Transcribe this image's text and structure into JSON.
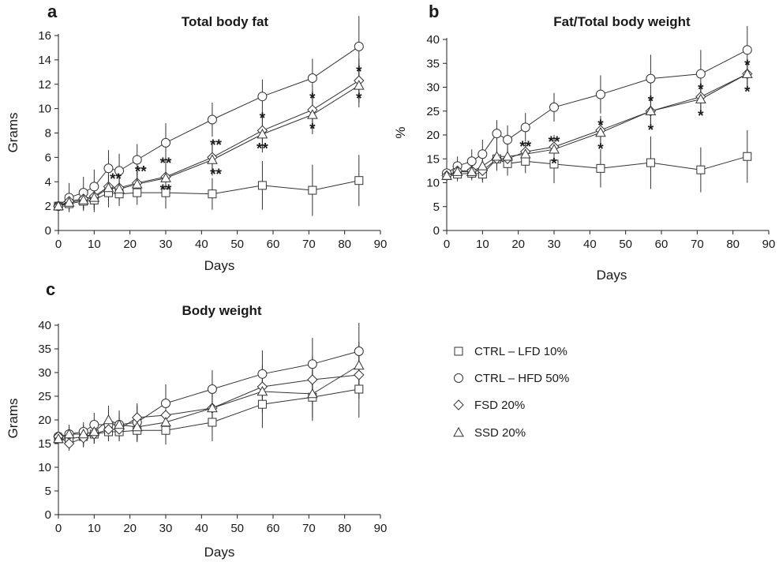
{
  "legend": [
    {
      "series": "CTRL",
      "label": "CTRL – LFD 10%",
      "marker": "square"
    },
    {
      "series": "HFD",
      "label": "CTRL – HFD 50%",
      "marker": "circle"
    },
    {
      "series": "FSD",
      "label": "FSD 20%",
      "marker": "diamond"
    },
    {
      "series": "SSD",
      "label": "SSD 20%",
      "marker": "triangle"
    }
  ],
  "chart_data": [
    {
      "id": "a",
      "panel_label": "a",
      "type": "line",
      "title": "Total body fat",
      "xlabel": "Days",
      "ylabel": "Grams",
      "xlim": [
        0,
        90
      ],
      "ylim": [
        0,
        16
      ],
      "xticks": [
        0,
        10,
        20,
        30,
        40,
        50,
        60,
        70,
        80,
        90
      ],
      "yticks": [
        0,
        2,
        4,
        6,
        8,
        10,
        12,
        14,
        16
      ],
      "grid": false,
      "series": [
        {
          "key": "CTRL",
          "marker": "square",
          "x": [
            0,
            3,
            7,
            10,
            14,
            17,
            22,
            30,
            43,
            57,
            71,
            84
          ],
          "y": [
            2.0,
            2.2,
            2.4,
            2.5,
            3.1,
            3.0,
            3.1,
            3.1,
            3.0,
            3.7,
            3.3,
            4.1
          ],
          "err": [
            0.3,
            0.6,
            0.8,
            1.0,
            1.2,
            1.0,
            1.0,
            1.3,
            1.3,
            2.0,
            2.1,
            2.1
          ]
        },
        {
          "key": "HFD",
          "marker": "circle",
          "x": [
            0,
            3,
            7,
            10,
            14,
            17,
            22,
            30,
            43,
            57,
            71,
            84
          ],
          "y": [
            2.0,
            2.7,
            3.1,
            3.6,
            5.1,
            4.9,
            5.8,
            7.2,
            9.1,
            11.0,
            12.5,
            15.1
          ],
          "err": [
            0.3,
            1.2,
            1.3,
            1.4,
            1.5,
            1.4,
            1.3,
            1.6,
            1.4,
            1.4,
            1.6,
            2.5
          ]
        },
        {
          "key": "FSD",
          "marker": "diamond",
          "x": [
            0,
            3,
            7,
            10,
            14,
            17,
            22,
            30,
            43,
            57,
            71,
            84
          ],
          "y": [
            2.0,
            2.4,
            2.6,
            2.8,
            3.6,
            3.5,
            3.9,
            4.4,
            6.0,
            8.2,
            9.9,
            12.3
          ],
          "err": [
            0.3,
            0.6,
            0.8,
            1.0,
            1.0,
            1.0,
            1.0,
            1.2,
            1.3,
            1.5,
            1.6,
            1.8
          ]
        },
        {
          "key": "SSD",
          "marker": "triangle",
          "x": [
            0,
            3,
            7,
            10,
            14,
            17,
            22,
            30,
            43,
            57,
            71,
            84
          ],
          "y": [
            2.0,
            2.3,
            2.5,
            2.7,
            3.5,
            3.4,
            3.8,
            4.3,
            5.8,
            7.9,
            9.5,
            11.9
          ],
          "err": [
            0.3,
            0.6,
            0.8,
            1.0,
            1.0,
            1.0,
            1.0,
            1.2,
            1.3,
            1.5,
            1.6,
            1.8
          ]
        }
      ],
      "annotations": [
        {
          "text": "**",
          "x": 16,
          "y": 4.6
        },
        {
          "text": "**",
          "x": 23,
          "y": 5.2
        },
        {
          "text": "**",
          "x": 30,
          "y": 5.9
        },
        {
          "text": "**",
          "x": 30,
          "y": 3.7
        },
        {
          "text": "**",
          "x": 44,
          "y": 7.4
        },
        {
          "text": "**",
          "x": 44,
          "y": 5.0
        },
        {
          "text": "*",
          "x": 57,
          "y": 9.6
        },
        {
          "text": "**",
          "x": 57,
          "y": 7.1
        },
        {
          "text": "*",
          "x": 71,
          "y": 11.2
        },
        {
          "text": "*",
          "x": 71,
          "y": 8.7
        },
        {
          "text": "*",
          "x": 84,
          "y": 13.4
        },
        {
          "text": "*",
          "x": 84,
          "y": 11.2
        }
      ]
    },
    {
      "id": "b",
      "panel_label": "b",
      "type": "line",
      "title": "Fat/Total body weight",
      "xlabel": "Days",
      "ylabel": "%",
      "xlim": [
        0,
        90
      ],
      "ylim": [
        0,
        40
      ],
      "xticks": [
        0,
        10,
        20,
        30,
        40,
        50,
        60,
        70,
        80,
        90
      ],
      "yticks": [
        0,
        5,
        10,
        15,
        20,
        25,
        30,
        35,
        40
      ],
      "grid": false,
      "series": [
        {
          "key": "CTRL",
          "marker": "square",
          "x": [
            0,
            3,
            7,
            10,
            14,
            17,
            22,
            30,
            43,
            57,
            71,
            84
          ],
          "y": [
            11.5,
            11.8,
            12.0,
            11.8,
            15.0,
            14.0,
            14.5,
            13.9,
            13.0,
            14.2,
            12.7,
            15.5
          ],
          "err": [
            1.0,
            1.5,
            1.5,
            1.8,
            2.5,
            2.5,
            2.5,
            4.0,
            4.0,
            5.5,
            4.7,
            5.5
          ]
        },
        {
          "key": "HFD",
          "marker": "circle",
          "x": [
            0,
            3,
            7,
            10,
            14,
            17,
            22,
            30,
            43,
            57,
            71,
            84
          ],
          "y": [
            12.0,
            13.5,
            14.5,
            16.0,
            20.3,
            19.0,
            21.6,
            25.8,
            28.5,
            31.8,
            32.8,
            37.8
          ],
          "err": [
            1.0,
            2.0,
            2.5,
            3.0,
            2.8,
            3.0,
            3.0,
            3.0,
            4.0,
            5.0,
            5.0,
            5.0
          ]
        },
        {
          "key": "FSD",
          "marker": "diamond",
          "x": [
            0,
            3,
            7,
            10,
            14,
            17,
            22,
            30,
            43,
            57,
            71,
            84
          ],
          "y": [
            11.5,
            12.5,
            12.5,
            12.5,
            15.0,
            15.0,
            16.5,
            17.5,
            21.0,
            25.0,
            28.0,
            32.8
          ],
          "err": [
            1.0,
            1.5,
            1.5,
            2.0,
            2.0,
            2.0,
            2.0,
            2.5,
            3.0,
            3.0,
            3.0,
            3.0
          ]
        },
        {
          "key": "SSD",
          "marker": "triangle",
          "x": [
            0,
            3,
            7,
            10,
            14,
            17,
            22,
            30,
            43,
            57,
            71,
            84
          ],
          "y": [
            11.5,
            12.3,
            12.3,
            13.5,
            15.5,
            15.5,
            16.0,
            17.0,
            20.5,
            25.0,
            27.5,
            32.8
          ],
          "err": [
            1.0,
            1.5,
            1.5,
            2.0,
            2.0,
            2.0,
            2.0,
            2.5,
            3.0,
            3.0,
            3.0,
            3.0
          ]
        }
      ],
      "annotations": [
        {
          "text": "**",
          "x": 22,
          "y": 18.5
        },
        {
          "text": "**",
          "x": 30,
          "y": 19.5
        },
        {
          "text": "*",
          "x": 30,
          "y": 15.0
        },
        {
          "text": "*",
          "x": 43,
          "y": 23.0
        },
        {
          "text": "*",
          "x": 43,
          "y": 18.0
        },
        {
          "text": "*",
          "x": 57,
          "y": 28.0
        },
        {
          "text": "*",
          "x": 57,
          "y": 22.0
        },
        {
          "text": "*",
          "x": 71,
          "y": 30.5
        },
        {
          "text": "*",
          "x": 71,
          "y": 25.0
        },
        {
          "text": "*",
          "x": 84,
          "y": 35.5
        },
        {
          "text": "*",
          "x": 84,
          "y": 30.0
        }
      ]
    },
    {
      "id": "c",
      "panel_label": "c",
      "type": "line",
      "title": "Body weight",
      "xlabel": "Days",
      "ylabel": "Grams",
      "xlim": [
        0,
        90
      ],
      "ylim": [
        0,
        40
      ],
      "xticks": [
        0,
        10,
        20,
        30,
        40,
        50,
        60,
        70,
        80,
        90
      ],
      "yticks": [
        0,
        5,
        10,
        15,
        20,
        25,
        30,
        35,
        40
      ],
      "grid": false,
      "series": [
        {
          "key": "CTRL",
          "marker": "square",
          "x": [
            0,
            3,
            7,
            10,
            14,
            17,
            22,
            30,
            43,
            57,
            71,
            84
          ],
          "y": [
            16.0,
            16.0,
            16.5,
            17.0,
            17.5,
            17.5,
            17.8,
            17.8,
            19.5,
            23.3,
            24.8,
            26.5
          ],
          "err": [
            1.0,
            1.5,
            2.0,
            2.0,
            2.0,
            2.0,
            2.5,
            3.0,
            4.0,
            5.0,
            5.0,
            6.0
          ]
        },
        {
          "key": "HFD",
          "marker": "circle",
          "x": [
            0,
            3,
            7,
            10,
            14,
            17,
            22,
            30,
            43,
            57,
            71,
            84
          ],
          "y": [
            16.5,
            17.0,
            17.5,
            19.0,
            19.0,
            19.0,
            19.5,
            23.5,
            26.5,
            29.7,
            31.8,
            34.5
          ],
          "err": [
            1.0,
            2.0,
            2.0,
            2.5,
            3.0,
            3.0,
            3.5,
            4.0,
            4.0,
            5.0,
            5.5,
            6.0
          ]
        },
        {
          "key": "FSD",
          "marker": "diamond",
          "x": [
            0,
            3,
            7,
            10,
            14,
            17,
            22,
            30,
            43,
            57,
            71,
            84
          ],
          "y": [
            16.5,
            15.0,
            16.2,
            17.0,
            18.0,
            18.0,
            20.5,
            21.0,
            22.5,
            27.0,
            28.5,
            29.5
          ],
          "err": [
            1.0,
            1.5,
            2.0,
            2.0,
            2.5,
            2.5,
            3.0,
            3.0,
            4.0,
            4.5,
            5.0,
            5.0
          ]
        },
        {
          "key": "SSD",
          "marker": "triangle",
          "x": [
            0,
            3,
            7,
            10,
            14,
            17,
            22,
            30,
            43,
            57,
            71,
            84
          ],
          "y": [
            16.0,
            17.0,
            17.0,
            17.5,
            20.0,
            19.0,
            18.5,
            19.5,
            22.5,
            26.0,
            25.5,
            31.5
          ],
          "err": [
            1.0,
            1.5,
            2.0,
            2.0,
            3.0,
            2.5,
            3.0,
            3.0,
            4.0,
            4.5,
            5.0,
            5.0
          ]
        }
      ],
      "annotations": []
    }
  ]
}
